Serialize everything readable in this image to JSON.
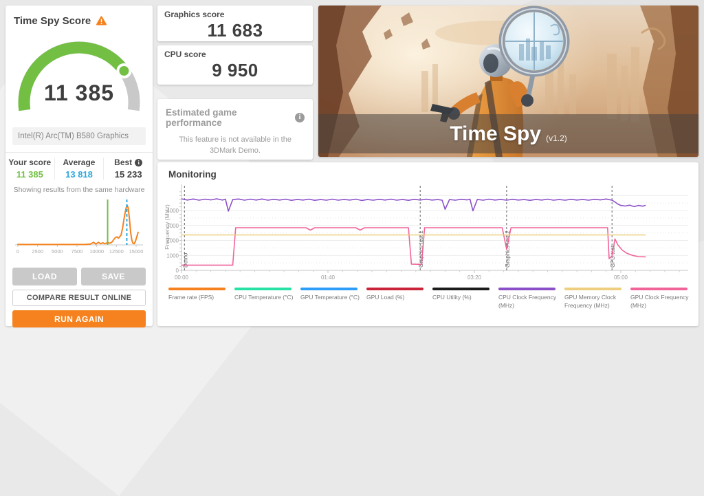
{
  "left_panel": {
    "title": "Time Spy Score",
    "score": "11 385",
    "gauge": {
      "fraction": 0.78,
      "color": "#72bf44",
      "track_color": "#c9c9c9"
    },
    "gpu_name": "Intel(R) Arc(TM) B580 Graphics",
    "comparison": {
      "your_score_label": "Your score",
      "your_score": "11 385",
      "your_score_color": "#72bf44",
      "average_label": "Average",
      "average": "13 818",
      "average_color": "#2da8dd",
      "best_label": "Best",
      "best": "15 233"
    },
    "buttons": {
      "load": "LOAD",
      "save": "SAVE",
      "compare": "COMPARE RESULT ONLINE",
      "run_again": "RUN AGAIN"
    }
  },
  "score_cards": {
    "graphics_label": "Graphics score",
    "graphics": "11 683",
    "cpu_label": "CPU score",
    "cpu": "9 950"
  },
  "estimated": {
    "title": "Estimated game performance",
    "body": "This feature is not available in the 3DMark Demo."
  },
  "hero": {
    "title": "Time Spy",
    "version": "(v1.2)"
  },
  "chart_data": [
    {
      "type": "area",
      "name": "score-distribution-histogram",
      "caption": "Showing results from the same hardware",
      "xlim": [
        0,
        15800
      ],
      "xticks": [
        0,
        2500,
        5000,
        7500,
        10000,
        12500,
        15000
      ],
      "curve_color": "#f5821f",
      "points": [
        [
          0,
          1
        ],
        [
          8500,
          1
        ],
        [
          9200,
          2
        ],
        [
          9600,
          6
        ],
        [
          9900,
          2
        ],
        [
          10200,
          6
        ],
        [
          10500,
          3
        ],
        [
          10800,
          5
        ],
        [
          11000,
          3
        ],
        [
          11200,
          4
        ],
        [
          11385,
          6
        ],
        [
          11600,
          4
        ],
        [
          11800,
          5
        ],
        [
          12000,
          8
        ],
        [
          12200,
          14
        ],
        [
          12400,
          18
        ],
        [
          12600,
          19
        ],
        [
          12750,
          16
        ],
        [
          12900,
          19
        ],
        [
          13100,
          24
        ],
        [
          13300,
          42
        ],
        [
          13500,
          66
        ],
        [
          13700,
          86
        ],
        [
          13850,
          95
        ],
        [
          14000,
          88
        ],
        [
          14150,
          62
        ],
        [
          14300,
          30
        ],
        [
          14450,
          12
        ],
        [
          14600,
          4
        ],
        [
          14750,
          3
        ],
        [
          14900,
          8
        ],
        [
          15100,
          20
        ],
        [
          15250,
          30
        ]
      ],
      "markers": [
        {
          "name": "your-score",
          "value": 11385,
          "color": "#72bf44",
          "dash": false
        },
        {
          "name": "average",
          "value": 13818,
          "color": "#2da8dd",
          "dash": true
        }
      ]
    },
    {
      "type": "line",
      "name": "monitoring-graph",
      "title": "Monitoring",
      "ylabel": "Frequency (MHz)",
      "ylim": [
        0,
        5400
      ],
      "yticks": [
        0,
        1000,
        2000,
        3000,
        4000
      ],
      "xlim_seconds": [
        0,
        340
      ],
      "xticks": [
        {
          "t": 0,
          "label": "00:00"
        },
        {
          "t": 100,
          "label": "01:40"
        },
        {
          "t": 200,
          "label": "03:20"
        },
        {
          "t": 300,
          "label": "05:00"
        }
      ],
      "events": [
        {
          "t": 2,
          "label": "Demo"
        },
        {
          "t": 163,
          "label": "Graphics test 1"
        },
        {
          "t": 222,
          "label": "Graphics test 2"
        },
        {
          "t": 294,
          "label": "CPU test"
        }
      ],
      "series": [
        {
          "name": "GPU Clock Frequency (MHz)",
          "color": "#f0649a",
          "points": [
            [
              0,
              350
            ],
            [
              35,
              350
            ],
            [
              37,
              2850
            ],
            [
              85,
              2850
            ],
            [
              88,
              2690
            ],
            [
              91,
              2850
            ],
            [
              119,
              2850
            ],
            [
              122,
              2690
            ],
            [
              125,
              2850
            ],
            [
              155,
              2850
            ],
            [
              157,
              420
            ],
            [
              164,
              400
            ],
            [
              166,
              2850
            ],
            [
              219,
              2850
            ],
            [
              222,
              1400
            ],
            [
              225,
              2850
            ],
            [
              288,
              2850
            ],
            [
              291,
              2850
            ],
            [
              292,
              780
            ],
            [
              294,
              960
            ],
            [
              296,
              2100
            ],
            [
              298,
              1700
            ],
            [
              301,
              1350
            ],
            [
              304,
              1150
            ],
            [
              308,
              1000
            ],
            [
              312,
              920
            ],
            [
              317,
              900
            ]
          ]
        },
        {
          "name": "GPU Memory Clock Frequency (MHz)",
          "color": "#eecf7f",
          "points": [
            [
              0,
              2370
            ],
            [
              317,
              2370
            ]
          ]
        },
        {
          "name": "CPU Clock Frequency (MHz)",
          "color": "#8b50c8",
          "points": [
            [
              0,
              4780
            ],
            [
              4,
              4700
            ],
            [
              8,
              4770
            ],
            [
              12,
              4690
            ],
            [
              16,
              4760
            ],
            [
              20,
              4710
            ],
            [
              24,
              4780
            ],
            [
              28,
              4700
            ],
            [
              30,
              4760
            ],
            [
              32,
              3960
            ],
            [
              35,
              4730
            ],
            [
              39,
              4770
            ],
            [
              43,
              4690
            ],
            [
              47,
              4760
            ],
            [
              51,
              4700
            ],
            [
              55,
              4770
            ],
            [
              59,
              4690
            ],
            [
              63,
              4750
            ],
            [
              67,
              4700
            ],
            [
              71,
              4760
            ],
            [
              75,
              4680
            ],
            [
              79,
              4740
            ],
            [
              83,
              4700
            ],
            [
              87,
              4760
            ],
            [
              91,
              4680
            ],
            [
              95,
              4730
            ],
            [
              99,
              4690
            ],
            [
              103,
              4760
            ],
            [
              107,
              4690
            ],
            [
              111,
              4740
            ],
            [
              115,
              4700
            ],
            [
              119,
              4760
            ],
            [
              123,
              4670
            ],
            [
              127,
              4730
            ],
            [
              131,
              4690
            ],
            [
              135,
              4750
            ],
            [
              139,
              4700
            ],
            [
              143,
              4760
            ],
            [
              147,
              4690
            ],
            [
              151,
              4740
            ],
            [
              155,
              4680
            ],
            [
              159,
              4750
            ],
            [
              163,
              4700
            ],
            [
              167,
              4760
            ],
            [
              171,
              4700
            ],
            [
              175,
              4730
            ],
            [
              178,
              4690
            ],
            [
              180,
              4080
            ],
            [
              183,
              4730
            ],
            [
              187,
              4690
            ],
            [
              191,
              4750
            ],
            [
              195,
              4710
            ],
            [
              197,
              4760
            ],
            [
              199,
              3980
            ],
            [
              202,
              4740
            ],
            [
              206,
              4690
            ],
            [
              210,
              4760
            ],
            [
              214,
              4700
            ],
            [
              218,
              4740
            ],
            [
              222,
              4690
            ],
            [
              226,
              4750
            ],
            [
              230,
              4700
            ],
            [
              234,
              4730
            ],
            [
              238,
              4680
            ],
            [
              242,
              4740
            ],
            [
              246,
              4700
            ],
            [
              250,
              4760
            ],
            [
              254,
              4690
            ],
            [
              258,
              4730
            ],
            [
              262,
              4690
            ],
            [
              266,
              4750
            ],
            [
              270,
              4700
            ],
            [
              274,
              4740
            ],
            [
              278,
              4690
            ],
            [
              282,
              4750
            ],
            [
              286,
              4710
            ],
            [
              290,
              4770
            ],
            [
              294,
              4690
            ],
            [
              296,
              4570
            ],
            [
              298,
              4430
            ],
            [
              300,
              4340
            ],
            [
              303,
              4300
            ],
            [
              306,
              4360
            ],
            [
              309,
              4260
            ],
            [
              312,
              4340
            ],
            [
              315,
              4290
            ],
            [
              317,
              4350
            ]
          ]
        }
      ],
      "legend": [
        {
          "label": "Frame rate (FPS)",
          "color": "#f5821f"
        },
        {
          "label": "CPU Temperature (°C)",
          "color": "#27e2a4"
        },
        {
          "label": "GPU Temperature (°C)",
          "color": "#2e9df7"
        },
        {
          "label": "GPU Load (%)",
          "color": "#c9243a"
        },
        {
          "label": "CPU Utility (%)",
          "color": "#1c1c1c"
        },
        {
          "label": "CPU Clock Frequency (MHz)",
          "color": "#8b50c8"
        },
        {
          "label": "GPU Memory Clock Frequency (MHz)",
          "color": "#eecf7f"
        },
        {
          "label": "GPU Clock Frequency (MHz)",
          "color": "#f0649a"
        }
      ]
    }
  ]
}
